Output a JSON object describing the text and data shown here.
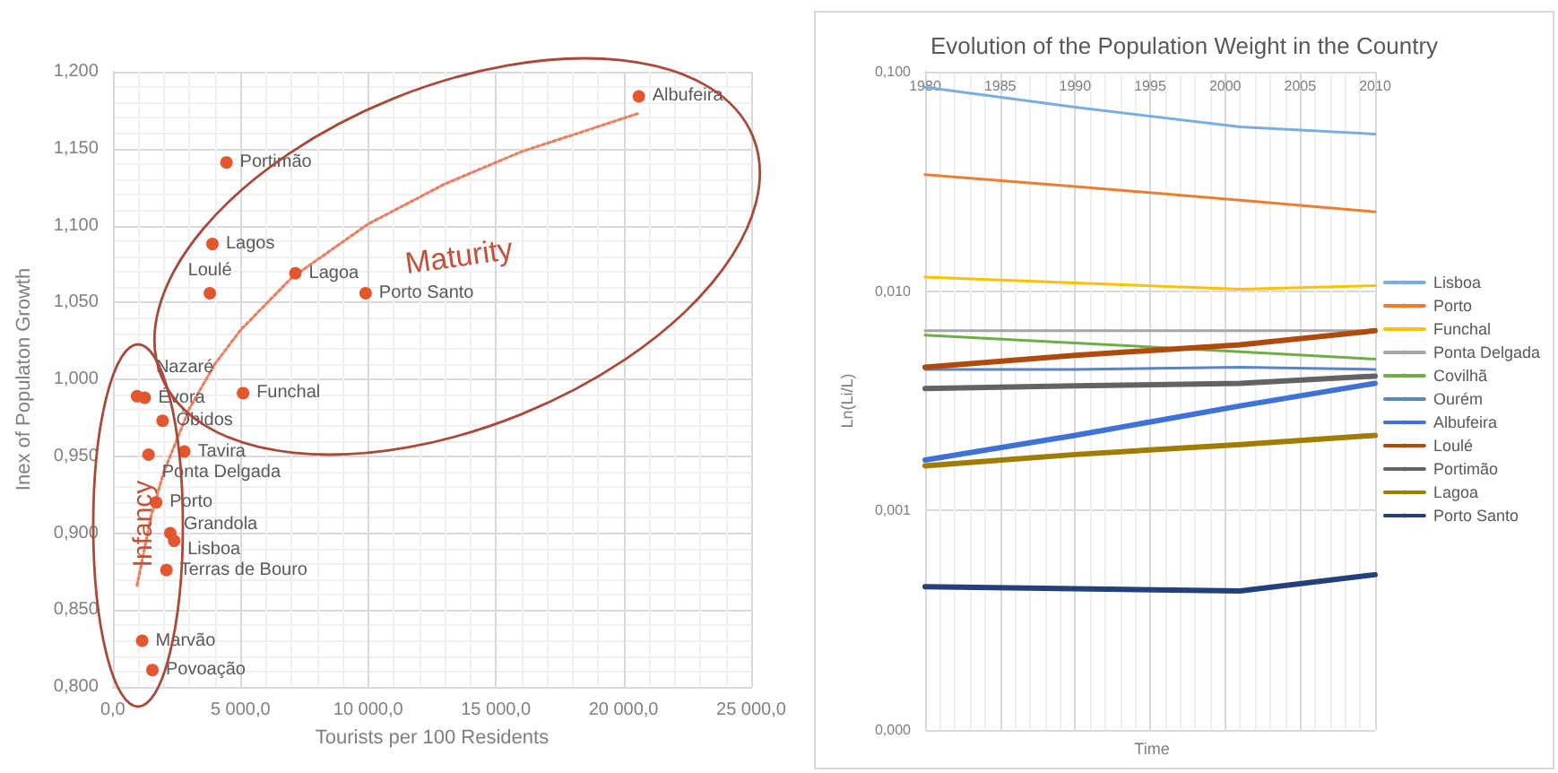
{
  "chart_data": [
    {
      "type": "scatter",
      "xlabel": "Tourists per 100 Residents",
      "ylabel": "Inex of Populaton Growth",
      "xlim": [
        0,
        25000
      ],
      "xticks": [
        {
          "value": 0,
          "label": "0,0"
        },
        {
          "value": 5000,
          "label": "5 000,0"
        },
        {
          "value": 10000,
          "label": "10 000,0"
        },
        {
          "value": 15000,
          "label": "15 000,0"
        },
        {
          "value": 20000,
          "label": "20 000,0"
        },
        {
          "value": 25000,
          "label": "25 000,0"
        }
      ],
      "ylim": [
        0.8,
        1.2
      ],
      "yticks": [
        {
          "value": 0.8,
          "label": "0,800"
        },
        {
          "value": 0.85,
          "label": "0,850"
        },
        {
          "value": 0.9,
          "label": "0,900"
        },
        {
          "value": 0.95,
          "label": "0,950"
        },
        {
          "value": 1.0,
          "label": "1,000"
        },
        {
          "value": 1.05,
          "label": "1,050"
        },
        {
          "value": 1.1,
          "label": "1,100"
        },
        {
          "value": 1.15,
          "label": "1,150"
        },
        {
          "value": 1.2,
          "label": "1,200"
        }
      ],
      "grid": true,
      "series": [
        {
          "marker": "circle",
          "color": "#e4572e",
          "x": [
            20600,
            4450,
            3900,
            3800,
            7150,
            9900,
            5100,
            950,
            1250,
            1950,
            2800,
            1400,
            1700,
            2250,
            2400,
            2100,
            1150,
            1550
          ],
          "values": [
            1.184,
            1.141,
            1.088,
            1.056,
            1.069,
            1.056,
            0.991,
            0.989,
            0.988,
            0.973,
            0.953,
            0.951,
            0.92,
            0.9,
            0.895,
            0.876,
            0.83,
            0.811
          ]
        },
        {
          "type": "line",
          "marker": "none",
          "line_style": "dotted",
          "color": "#ec7f63",
          "x": [
            950,
            1500,
            2000,
            3000,
            4000,
            5000,
            7000,
            10000,
            13000,
            16000,
            20600
          ],
          "values": [
            0.866,
            0.911,
            0.94,
            0.981,
            1.01,
            1.032,
            1.066,
            1.101,
            1.127,
            1.148,
            1.173
          ]
        }
      ],
      "annotations": [
        {
          "text": "Albufeira",
          "x": 20600,
          "y": 1.184
        },
        {
          "text": "Portimão",
          "x": 4450,
          "y": 1.141
        },
        {
          "text": "Lagos",
          "x": 3900,
          "y": 1.088
        },
        {
          "text": "Loulé",
          "x": 3800,
          "y": 1.056
        },
        {
          "text": "Lagoa",
          "x": 7150,
          "y": 1.069
        },
        {
          "text": "Porto Santo",
          "x": 9900,
          "y": 1.056
        },
        {
          "text": "Funchal",
          "x": 5100,
          "y": 0.991
        },
        {
          "text": "Nazaré",
          "x": 950,
          "y": 0.989
        },
        {
          "text": "Évora",
          "x": 1250,
          "y": 0.988
        },
        {
          "text": "Óbidos",
          "x": 1950,
          "y": 0.973
        },
        {
          "text": "Tavira",
          "x": 2800,
          "y": 0.953
        },
        {
          "text": "Ponta Delgada",
          "x": 1400,
          "y": 0.951
        },
        {
          "text": "Porto",
          "x": 1700,
          "y": 0.92
        },
        {
          "text": "Grandola",
          "x": 2250,
          "y": 0.9
        },
        {
          "text": "Lisboa",
          "x": 2400,
          "y": 0.895
        },
        {
          "text": "Terras de Bouro",
          "x": 2100,
          "y": 0.876
        },
        {
          "text": "Marvão",
          "x": 1150,
          "y": 0.83
        },
        {
          "text": "Povoação",
          "x": 1550,
          "y": 0.811
        },
        "Maturity",
        "Infancy"
      ]
    },
    {
      "type": "line",
      "title": "Evolution of the Population Weight in the Country",
      "xlabel": "Time",
      "ylabel": "Ln(Li/L)",
      "x": [
        1980,
        1990,
        2001,
        2010
      ],
      "xlim": [
        1980,
        2010
      ],
      "xticks": [
        1980,
        1985,
        1990,
        1995,
        2000,
        2005,
        2010
      ],
      "log": "y",
      "ylim": [
        0.0001,
        0.1
      ],
      "yticks": [
        {
          "value": 0.0001,
          "label": "0,000"
        },
        {
          "value": 0.001,
          "label": "0,001"
        },
        {
          "value": 0.01,
          "label": "0,010"
        },
        {
          "value": 0.1,
          "label": "0,100"
        }
      ],
      "grid": true,
      "legend": "right",
      "marker": "none",
      "series": [
        {
          "name": "Lisboa",
          "color": "#7aaee0",
          "values": [
            0.085,
            0.069,
            0.056,
            0.052
          ]
        },
        {
          "name": "Porto",
          "color": "#ed7d31",
          "values": [
            0.034,
            0.03,
            0.026,
            0.023
          ]
        },
        {
          "name": "Funchal",
          "color": "#ffc000",
          "values": [
            0.0116,
            0.0109,
            0.0102,
            0.0106
          ]
        },
        {
          "name": "Ponta Delgada",
          "color": "#a5a5a5",
          "values": [
            0.0066,
            0.0066,
            0.0066,
            0.0066
          ]
        },
        {
          "name": "Covilhã",
          "color": "#70ad47",
          "values": [
            0.0063,
            0.0058,
            0.0053,
            0.0049
          ]
        },
        {
          "name": "Ourém",
          "color": "#5b84c4",
          "values": [
            0.0044,
            0.0044,
            0.0045,
            0.0044
          ]
        },
        {
          "name": "Albufeira",
          "color": "#3f72d6",
          "values": [
            0.0017,
            0.0022,
            0.003,
            0.0038
          ]
        },
        {
          "name": "Loulé",
          "color": "#b04a0c",
          "values": [
            0.0045,
            0.0051,
            0.0057,
            0.0066
          ]
        },
        {
          "name": "Portimão",
          "color": "#636363",
          "values": [
            0.0036,
            0.0037,
            0.0038,
            0.0041
          ]
        },
        {
          "name": "Lagoa",
          "color": "#a07c00",
          "values": [
            0.0016,
            0.0018,
            0.002,
            0.0022
          ]
        },
        {
          "name": "Porto Santo",
          "color": "#23407a",
          "values": [
            0.00045,
            0.00044,
            0.00043,
            0.00051
          ]
        }
      ]
    }
  ]
}
